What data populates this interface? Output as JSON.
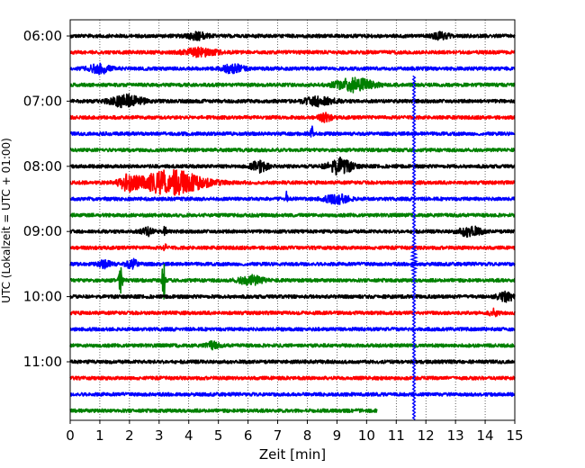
{
  "chart_data": {
    "type": "line",
    "subtype": "helicorder",
    "xlabel": "Zeit  [min]",
    "ylabel": "UTC (Lokalzeit = UTC + 01:00)",
    "xlim": [
      0,
      15
    ],
    "x_ticks": [
      "0",
      "1",
      "2",
      "3",
      "4",
      "5",
      "6",
      "7",
      "8",
      "9",
      "10",
      "11",
      "12",
      "13",
      "14",
      "15"
    ],
    "y_ticks": [
      "06:00",
      "07:00",
      "08:00",
      "09:00",
      "10:00",
      "11:00"
    ],
    "row_interval_min": 15,
    "row_colors": [
      "#000000",
      "#ff0000",
      "#0000ff",
      "#008000"
    ],
    "grid": "vertical dotted",
    "rows": [
      {
        "start": "06:00",
        "color": "#000000",
        "end_min": 15,
        "events": [
          {
            "t": 4.3,
            "amp": 1.2,
            "dur": 0.5
          },
          {
            "t": 12.5,
            "amp": 1.1,
            "dur": 0.4
          }
        ]
      },
      {
        "start": "06:15",
        "color": "#ff0000",
        "end_min": 15,
        "events": [
          {
            "t": 4.4,
            "amp": 1.4,
            "dur": 0.8
          }
        ]
      },
      {
        "start": "06:30",
        "color": "#0000ff",
        "end_min": 15,
        "events": [
          {
            "t": 1.0,
            "amp": 1.6,
            "dur": 0.5
          },
          {
            "t": 5.5,
            "amp": 1.5,
            "dur": 0.5
          }
        ]
      },
      {
        "start": "06:45",
        "color": "#008000",
        "end_min": 15,
        "events": [
          {
            "t": 9.6,
            "amp": 2.3,
            "dur": 0.9
          }
        ]
      },
      {
        "start": "07:00",
        "color": "#000000",
        "end_min": 15,
        "events": [
          {
            "t": 1.9,
            "amp": 2.1,
            "dur": 0.8
          },
          {
            "t": 8.4,
            "amp": 1.6,
            "dur": 0.7
          }
        ]
      },
      {
        "start": "07:15",
        "color": "#ff0000",
        "end_min": 15,
        "events": [
          {
            "t": 8.6,
            "amp": 1.4,
            "dur": 0.3
          }
        ]
      },
      {
        "start": "07:30",
        "color": "#0000ff",
        "end_min": 15,
        "events": [
          {
            "t": 8.15,
            "amp": 3.0,
            "dur": 0.05
          }
        ]
      },
      {
        "start": "07:45",
        "color": "#008000",
        "end_min": 15,
        "events": []
      },
      {
        "start": "08:00",
        "color": "#000000",
        "end_min": 15,
        "events": [
          {
            "t": 6.4,
            "amp": 2.0,
            "dur": 0.4
          },
          {
            "t": 9.1,
            "amp": 2.8,
            "dur": 0.6
          }
        ]
      },
      {
        "start": "08:15",
        "color": "#ff0000",
        "end_min": 15,
        "events": [
          {
            "t": 1.95,
            "amp": 2.3,
            "dur": 0.4
          },
          {
            "t": 3.4,
            "amp": 4.2,
            "dur": 1.6
          }
        ]
      },
      {
        "start": "08:30",
        "color": "#0000ff",
        "end_min": 15,
        "events": [
          {
            "t": 7.3,
            "amp": 3.0,
            "dur": 0.05
          },
          {
            "t": 9.0,
            "amp": 1.5,
            "dur": 0.6
          }
        ]
      },
      {
        "start": "08:45",
        "color": "#008000",
        "end_min": 15,
        "events": []
      },
      {
        "start": "09:00",
        "color": "#000000",
        "end_min": 15,
        "events": [
          {
            "t": 3.2,
            "amp": 3.0,
            "dur": 0.05
          },
          {
            "t": 13.5,
            "amp": 1.8,
            "dur": 0.5
          },
          {
            "t": 2.6,
            "amp": 1.3,
            "dur": 0.3
          }
        ]
      },
      {
        "start": "09:15",
        "color": "#ff0000",
        "end_min": 15,
        "events": [
          {
            "t": 3.2,
            "amp": 2.5,
            "dur": 0.05
          }
        ]
      },
      {
        "start": "09:30",
        "color": "#0000ff",
        "end_min": 15,
        "events": [
          {
            "t": 1.2,
            "amp": 1.5,
            "dur": 0.3
          },
          {
            "t": 2.1,
            "amp": 1.6,
            "dur": 0.3
          }
        ]
      },
      {
        "start": "09:45",
        "color": "#008000",
        "end_min": 15,
        "events": [
          {
            "t": 1.7,
            "amp": 7.0,
            "dur": 0.08
          },
          {
            "t": 3.15,
            "amp": 7.0,
            "dur": 0.08
          },
          {
            "t": 6.1,
            "amp": 1.6,
            "dur": 0.6
          }
        ]
      },
      {
        "start": "10:00",
        "color": "#000000",
        "end_min": 15,
        "events": [
          {
            "t": 14.7,
            "amp": 1.5,
            "dur": 0.4
          }
        ]
      },
      {
        "start": "10:15",
        "color": "#ff0000",
        "end_min": 15,
        "events": [
          {
            "t": 14.3,
            "amp": 1.3,
            "dur": 0.2
          }
        ]
      },
      {
        "start": "10:30",
        "color": "#0000ff",
        "end_min": 15,
        "events": []
      },
      {
        "start": "10:45",
        "color": "#008000",
        "end_min": 15,
        "events": [
          {
            "t": 4.8,
            "amp": 1.2,
            "dur": 0.3
          }
        ]
      },
      {
        "start": "11:00",
        "color": "#000000",
        "end_min": 15,
        "events": []
      },
      {
        "start": "11:15",
        "color": "#ff0000",
        "end_min": 15,
        "events": []
      },
      {
        "start": "11:30",
        "color": "#0000ff",
        "end_min": 15,
        "events": []
      },
      {
        "start": "11:45",
        "color": "#008000",
        "end_min": 10.35,
        "events": []
      }
    ],
    "spike": {
      "t": 11.6,
      "from_row": 3,
      "to_row": 23,
      "color": "#0000ff"
    }
  }
}
